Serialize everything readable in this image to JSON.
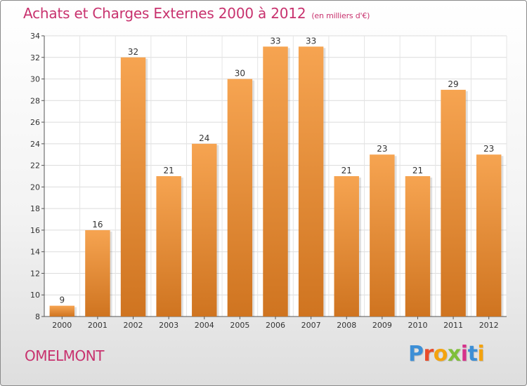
{
  "header": {
    "title": "Achats et Charges Externes 2000 à 2012",
    "subtitle": "(en milliers d'€)"
  },
  "footer": {
    "commune": "OMELMONT",
    "logo_letters": [
      "P",
      "r",
      "o",
      "x",
      "i",
      "t",
      "i"
    ],
    "logo_colors": [
      "#3d8fd6",
      "#e94b2a",
      "#f4a30e",
      "#7fbf3a",
      "#d6318b",
      "#3d8fd6",
      "#f4a30e"
    ]
  },
  "colors": {
    "bar_top": "#f6a451",
    "bar_bottom": "#cf7420",
    "title": "#c8326e"
  },
  "chart_data": {
    "type": "bar",
    "categories": [
      "2000",
      "2001",
      "2002",
      "2003",
      "2004",
      "2005",
      "2006",
      "2007",
      "2008",
      "2009",
      "2010",
      "2011",
      "2012"
    ],
    "values": [
      9,
      16,
      32,
      21,
      24,
      30,
      33,
      33,
      21,
      23,
      21,
      29,
      23
    ],
    "ylim": [
      8,
      34
    ],
    "yticks": [
      8,
      10,
      12,
      14,
      16,
      18,
      20,
      22,
      24,
      26,
      28,
      30,
      32,
      34
    ],
    "grid": true
  }
}
